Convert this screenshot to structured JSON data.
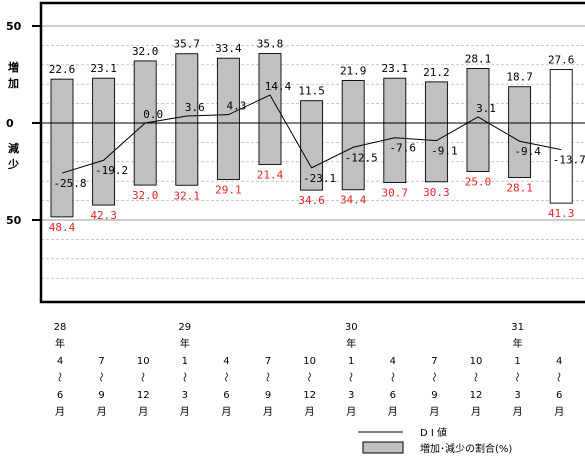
{
  "chart_data": {
    "type": "bar",
    "ylim": [
      -60,
      60
    ],
    "yticks": [
      {
        "value": 50,
        "label": "50"
      },
      {
        "value": 0,
        "label": "0"
      },
      {
        "value": -50,
        "label": "50"
      }
    ],
    "ylabel_up": [
      "増",
      "加"
    ],
    "ylabel_down": [
      "減",
      "少"
    ],
    "gridlines": [
      40,
      30,
      20,
      10,
      -10,
      -20,
      -30,
      -40,
      -60,
      -70,
      -80
    ],
    "categories": [
      [
        "28",
        "年",
        "4",
        "〜",
        "6",
        "月"
      ],
      [
        "",
        "",
        "7",
        "〜",
        "9",
        "月"
      ],
      [
        "",
        "",
        "10",
        "〜",
        "12",
        "月"
      ],
      [
        "29",
        "年",
        "1",
        "〜",
        "3",
        "月"
      ],
      [
        "",
        "",
        "4",
        "〜",
        "6",
        "月"
      ],
      [
        "",
        "",
        "7",
        "〜",
        "9",
        "月"
      ],
      [
        "",
        "",
        "10",
        "〜",
        "12",
        "月"
      ],
      [
        "30",
        "年",
        "1",
        "〜",
        "3",
        "月"
      ],
      [
        "",
        "",
        "4",
        "〜",
        "6",
        "月"
      ],
      [
        "",
        "",
        "7",
        "〜",
        "9",
        "月"
      ],
      [
        "",
        "",
        "10",
        "〜",
        "12",
        "月"
      ],
      [
        "31",
        "年",
        "1",
        "〜",
        "3",
        "月"
      ],
      [
        "",
        "",
        "4",
        "〜",
        "6",
        "月"
      ]
    ],
    "series": [
      {
        "name": "増加",
        "values": [
          22.6,
          23.1,
          32.0,
          35.7,
          33.4,
          35.8,
          11.5,
          21.9,
          23.1,
          21.2,
          28.1,
          18.7,
          27.6
        ]
      },
      {
        "name": "減少",
        "values": [
          48.4,
          42.3,
          32.0,
          32.1,
          29.1,
          21.4,
          34.6,
          34.4,
          30.7,
          30.3,
          25.0,
          28.1,
          41.3
        ]
      },
      {
        "name": "D I 値",
        "values": [
          -25.8,
          -19.2,
          0.0,
          3.6,
          4.3,
          14.4,
          -23.1,
          -12.5,
          -7.6,
          -9.1,
          3.1,
          -9.4,
          -13.7
        ]
      }
    ],
    "increase_labels": [
      "22.6",
      "23.1",
      "32.0",
      "35.7",
      "33.4",
      "35.8",
      "11.5",
      "21.9",
      "23.1",
      "21.2",
      "28.1",
      "18.7",
      "27.6"
    ],
    "decrease_labels": [
      "48.4",
      "42.3",
      "32.0",
      "32.1",
      "29.1",
      "21.4",
      "34.6",
      "34.4",
      "30.7",
      "30.3",
      "25.0",
      "28.1",
      "41.3"
    ],
    "di_labels": [
      "-25.8",
      "-19.2",
      "0.0",
      "3.6",
      "4.3",
      "14.4",
      "-23.1",
      "-12.5",
      "-7.6",
      "-9.1",
      "3.1",
      "-9.4",
      "-13.7"
    ],
    "forecast_index": 12,
    "colors": {
      "bar": "#c0c0c0",
      "forecast_bar": "#ffffff",
      "decrease_label": "#e8242a",
      "line": "#000000",
      "grid": "#aaaaaa"
    },
    "legend": {
      "placement": "bottom-right",
      "line_label": "D I 値",
      "bar_label": "増加･減少の割合(%)"
    }
  }
}
